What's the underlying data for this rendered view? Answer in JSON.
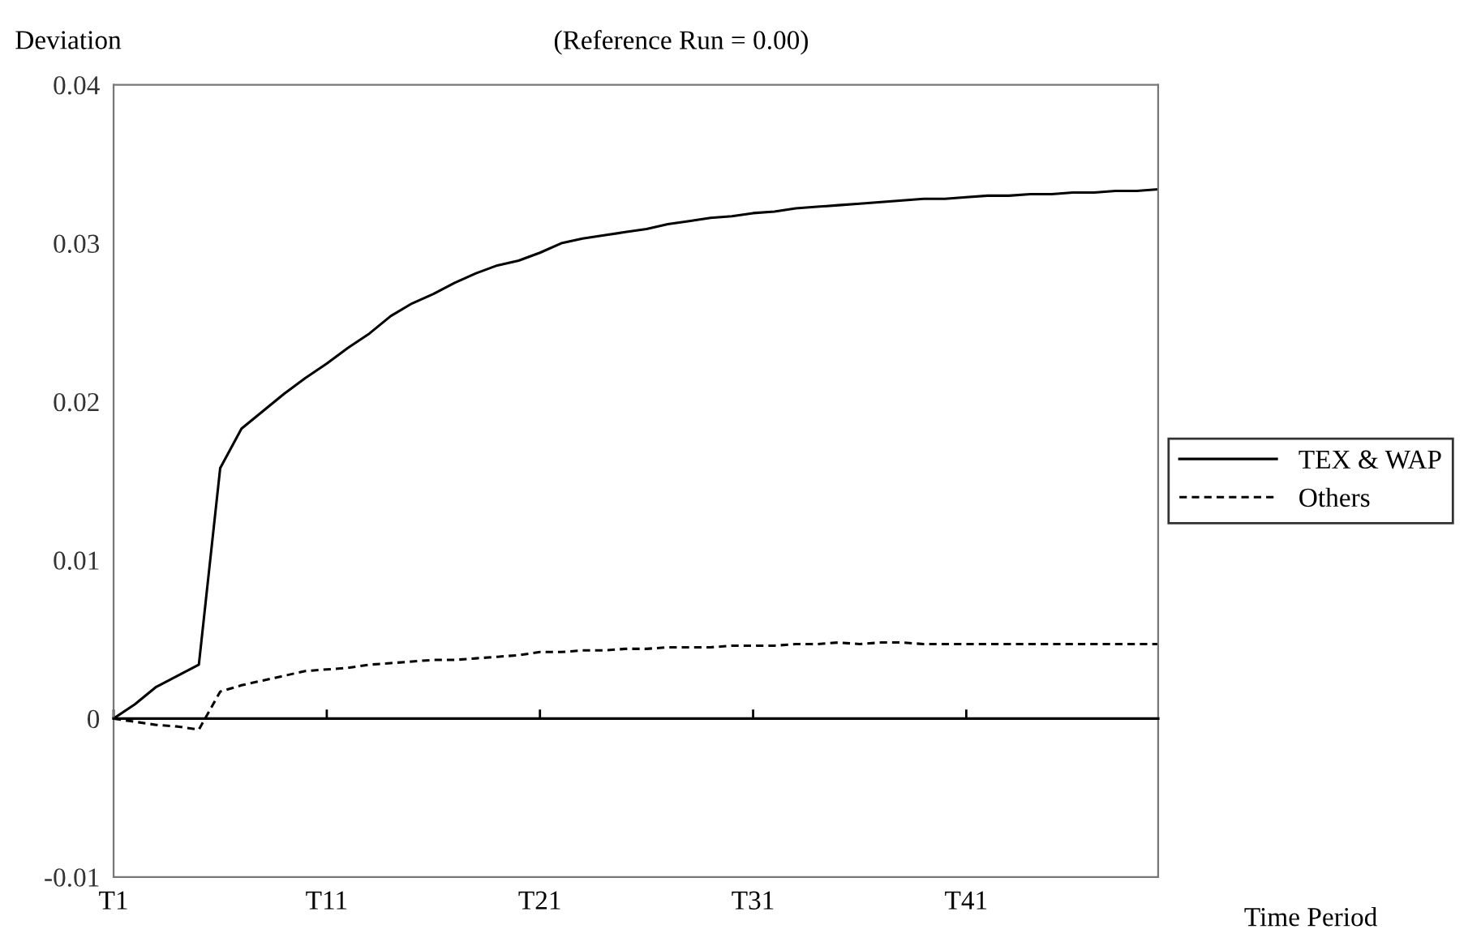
{
  "chart_data": {
    "type": "line",
    "title": "(Reference Run = 0.00)",
    "xlabel": "Time Period",
    "ylabel": "Deviation",
    "categories": [
      "T1",
      null,
      null,
      null,
      null,
      null,
      null,
      null,
      null,
      null,
      "T11",
      null,
      null,
      null,
      null,
      null,
      null,
      null,
      null,
      null,
      "T21",
      null,
      null,
      null,
      null,
      null,
      null,
      null,
      null,
      null,
      "T31",
      null,
      null,
      null,
      null,
      null,
      null,
      null,
      null,
      null,
      "T41",
      null,
      null,
      null,
      null,
      null,
      null,
      null,
      null,
      null
    ],
    "ylim": [
      -0.01,
      0.04
    ],
    "yticks": [
      {
        "value": -0.01,
        "label": "-0.01"
      },
      {
        "value": 0,
        "label": "0"
      },
      {
        "value": 0.01,
        "label": "0.01"
      },
      {
        "value": 0.02,
        "label": "0.02"
      },
      {
        "value": 0.03,
        "label": "0.03"
      },
      {
        "value": 0.04,
        "label": "0.04"
      }
    ],
    "legend": "right",
    "marker": "none",
    "series": [
      {
        "name": "TEX & WAP",
        "color": "#000000",
        "line_style": "solid",
        "values": [
          0,
          0.0009,
          0.002,
          0.0027,
          0.0034,
          0.0158,
          0.0183,
          0.0194,
          0.0205,
          0.0215,
          0.0224,
          0.0234,
          0.0243,
          0.0254,
          0.0262,
          0.0268,
          0.0275,
          0.0281,
          0.0286,
          0.0289,
          0.0294,
          0.03,
          0.0303,
          0.0305,
          0.0307,
          0.0309,
          0.0312,
          0.0314,
          0.0316,
          0.0317,
          0.0319,
          0.032,
          0.0322,
          0.0323,
          0.0324,
          0.0325,
          0.0326,
          0.0327,
          0.0328,
          0.0328,
          0.0329,
          0.033,
          0.033,
          0.0331,
          0.0331,
          0.0332,
          0.0332,
          0.0333,
          0.0333,
          0.0334
        ]
      },
      {
        "name": "Others",
        "color": "#000000",
        "line_style": "dashed",
        "values": [
          0,
          -0.0002,
          -0.0004,
          -0.0005,
          -0.0007,
          0.0017,
          0.0021,
          0.0024,
          0.0027,
          0.003,
          0.0031,
          0.0032,
          0.0034,
          0.0035,
          0.0036,
          0.0037,
          0.0037,
          0.0038,
          0.0039,
          0.004,
          0.0042,
          0.0042,
          0.0043,
          0.0043,
          0.0044,
          0.0044,
          0.0045,
          0.0045,
          0.0045,
          0.0046,
          0.0046,
          0.0046,
          0.0047,
          0.0047,
          0.0048,
          0.0047,
          0.0048,
          0.0048,
          0.0047,
          0.0047,
          0.0047,
          0.0047,
          0.0047,
          0.0047,
          0.0047,
          0.0047,
          0.0047,
          0.0047,
          0.0047,
          0.0047
        ]
      }
    ]
  }
}
